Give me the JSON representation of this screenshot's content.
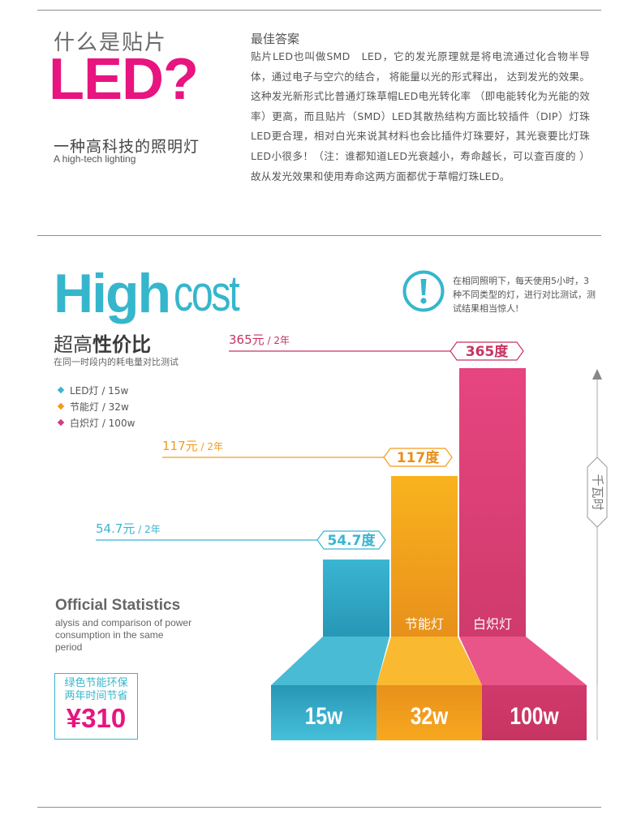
{
  "top": {
    "question": "什么是贴片",
    "headline": "LED?",
    "subtitle_cn": "一种高科技的照明灯",
    "subtitle_en": "A high-tech lighting",
    "answer_title": "最佳答案",
    "answer_body": "贴片LED也叫做SMD　LED，它的发光原理就是将电流通过化合物半导体，通过电子与空穴的结合， 将能量以光的形式释出， 达到发光的效果。这种发光新形式比普通灯珠草帽LED电光转化率 （即电能转化为光能的效率）更高，而且贴片（SMD）LED其散热结构方面比较插件（DIP）灯珠LED更合理，相对白光来说其材料也会比插件灯珠要好，其光衰要比灯珠LED小很多！（注：谁都知道LED光衰越小，寿命越长，可以查百度的 ）故从发光效果和使用寿命这两方面都优于草帽灯珠LED。"
  },
  "cost": {
    "high": "High",
    "cost": "cost",
    "title_normal": "超高",
    "title_bold": "性价比",
    "subtitle": "在同一时段内的耗电量对比测试",
    "note": "在相同照明下，每天使用5小时，3种不同类型的灯，进行对比测试，测试结果相当惊人!",
    "alert_icon": "exclamation-circle-icon",
    "stats_title": "Official Statistics",
    "stats_sub": "alysis and comparison of power consumption in the same period",
    "saving_line1": "绿色节能环保",
    "saving_line2": "两年时间节省",
    "saving_amount": "¥310",
    "axis_label": "千瓦时",
    "legend": [
      {
        "label": "LED灯 / 15w",
        "color": "#3ab5d1"
      },
      {
        "label": "节能灯 / 32w",
        "color": "#f49a1c"
      },
      {
        "label": "白炽灯 / 100w",
        "color": "#d63d7e"
      }
    ]
  },
  "chart_data": {
    "type": "bar",
    "categories": [
      "LED灯",
      "节能灯",
      "白炽灯"
    ],
    "bar_labels": [
      "",
      "节能灯",
      "白炽灯"
    ],
    "wattage_labels": [
      "15w",
      "32w",
      "100w"
    ],
    "values": [
      54.7,
      117,
      365
    ],
    "value_labels": [
      "54.7度",
      "117度",
      "365度"
    ],
    "cost_labels": [
      {
        "amount": "54.7元",
        "period": " / 2年"
      },
      {
        "amount": "117元",
        "period": " / 2年"
      },
      {
        "amount": "365元",
        "period": " / 2年"
      }
    ],
    "ylabel": "千瓦时",
    "colors": [
      "#3ab5d1",
      "#f9b31e",
      "#e7457f"
    ]
  }
}
